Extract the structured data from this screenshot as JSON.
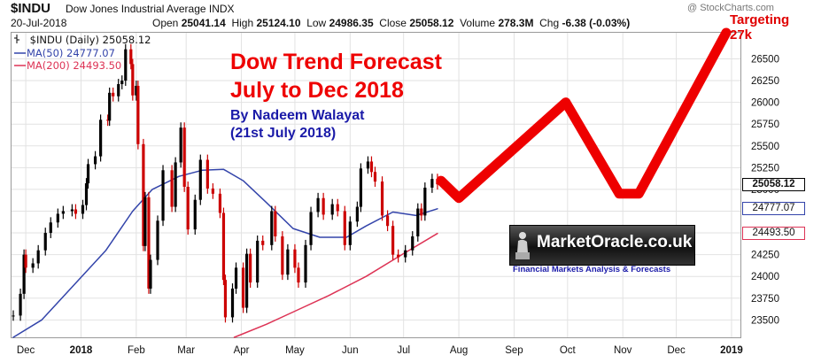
{
  "header": {
    "symbol": "$INDU",
    "name": "Dow Jones Industrial Average INDX",
    "date": "20-Jul-2018",
    "open_label": "Open",
    "open": "25041.14",
    "high_label": "High",
    "high": "25124.10",
    "low_label": "Low",
    "low": "24986.35",
    "close_label": "Close",
    "close": "25058.12",
    "volume_label": "Volume",
    "volume": "278.3M",
    "chg_label": "Chg",
    "chg": "-6.38 (-0.03%)",
    "watermark": "@ StockCharts.com"
  },
  "legend": {
    "price": "$INDU (Daily) 25058.12",
    "ma50": "MA(50) 24777.07",
    "ma200": "MA(200) 24493.50"
  },
  "annotation": {
    "title_line1": "Dow Trend Forecast",
    "title_line2": "July to Dec 2018",
    "author": "By Nadeem Walayat",
    "date": "(21st July 2018)",
    "target": "Targeting 27k"
  },
  "logo": {
    "name": "MarketOracle.co.uk",
    "tagline": "Financial Markets Analysis & Forecasts"
  },
  "colors": {
    "candle": "#000000",
    "down_candle": "#cc0000",
    "ma50": "#3344aa",
    "ma200": "#dd3355",
    "forecast": "#ee0000",
    "title": "#ee0000",
    "author": "#1a1aa8"
  },
  "chart_data": {
    "type": "line",
    "title": "$INDU (Daily) 25058.12",
    "x_type": "date",
    "xlim": [
      "2017-11-23",
      "2019-01-06"
    ],
    "ylim": [
      23300,
      26800
    ],
    "y_ticks": [
      23500,
      23750,
      24000,
      24250,
      24500,
      24750,
      25000,
      25250,
      25500,
      25750,
      26000,
      26250,
      26500
    ],
    "x_ticks": [
      {
        "date": "2017-12-01",
        "label": "Dec"
      },
      {
        "date": "2018-01-01",
        "label": "2018"
      },
      {
        "date": "2018-02-01",
        "label": "Feb"
      },
      {
        "date": "2018-03-01",
        "label": "Mar"
      },
      {
        "date": "2018-04-01",
        "label": "Apr"
      },
      {
        "date": "2018-05-01",
        "label": "May"
      },
      {
        "date": "2018-06-01",
        "label": "Jun"
      },
      {
        "date": "2018-07-01",
        "label": "Jul"
      },
      {
        "date": "2018-08-01",
        "label": "Aug"
      },
      {
        "date": "2018-09-01",
        "label": "Sep"
      },
      {
        "date": "2018-10-01",
        "label": "Oct"
      },
      {
        "date": "2018-11-01",
        "label": "Nov"
      },
      {
        "date": "2018-12-01",
        "label": "Dec"
      },
      {
        "date": "2019-01-01",
        "label": "2019"
      }
    ],
    "y_labels": [
      {
        "value": 25058.12,
        "text": "25058.12",
        "series": "price"
      },
      {
        "value": 24777.07,
        "text": "24777.07",
        "series": "ma50"
      },
      {
        "value": 24493.5,
        "text": "24493.50",
        "series": "ma200"
      }
    ],
    "price": [
      [
        "2017-11-24",
        23550
      ],
      [
        "2017-11-28",
        23800
      ],
      [
        "2017-11-30",
        24250
      ],
      [
        "2017-12-01",
        24100
      ],
      [
        "2017-12-05",
        24150
      ],
      [
        "2017-12-08",
        24300
      ],
      [
        "2017-12-12",
        24500
      ],
      [
        "2017-12-15",
        24620
      ],
      [
        "2017-12-19",
        24720
      ],
      [
        "2017-12-22",
        24750
      ],
      [
        "2017-12-27",
        24770
      ],
      [
        "2017-12-29",
        24720
      ],
      [
        "2018-01-02",
        24820
      ],
      [
        "2018-01-04",
        25070
      ],
      [
        "2018-01-05",
        25290
      ],
      [
        "2018-01-09",
        25380
      ],
      [
        "2018-01-12",
        25800
      ],
      [
        "2018-01-16",
        25790
      ],
      [
        "2018-01-17",
        26110
      ],
      [
        "2018-01-19",
        26070
      ],
      [
        "2018-01-22",
        26210
      ],
      [
        "2018-01-24",
        26250
      ],
      [
        "2018-01-26",
        26610
      ],
      [
        "2018-01-29",
        26440
      ],
      [
        "2018-01-30",
        26080
      ],
      [
        "2018-02-01",
        26190
      ],
      [
        "2018-02-02",
        25520
      ],
      [
        "2018-02-05",
        24350
      ],
      [
        "2018-02-06",
        24910
      ],
      [
        "2018-02-08",
        23860
      ],
      [
        "2018-02-09",
        24190
      ],
      [
        "2018-02-13",
        24640
      ],
      [
        "2018-02-16",
        25220
      ],
      [
        "2018-02-21",
        24800
      ],
      [
        "2018-02-23",
        25310
      ],
      [
        "2018-02-26",
        25710
      ],
      [
        "2018-02-28",
        25030
      ],
      [
        "2018-03-02",
        24540
      ],
      [
        "2018-03-06",
        24880
      ],
      [
        "2018-03-09",
        25340
      ],
      [
        "2018-03-13",
        25010
      ],
      [
        "2018-03-16",
        24950
      ],
      [
        "2018-03-20",
        24730
      ],
      [
        "2018-03-22",
        23960
      ],
      [
        "2018-03-23",
        23530
      ],
      [
        "2018-03-27",
        23860
      ],
      [
        "2018-03-29",
        24100
      ],
      [
        "2018-04-02",
        23640
      ],
      [
        "2018-04-04",
        24260
      ],
      [
        "2018-04-06",
        23930
      ],
      [
        "2018-04-10",
        24410
      ],
      [
        "2018-04-13",
        24360
      ],
      [
        "2018-04-18",
        24750
      ],
      [
        "2018-04-20",
        24460
      ],
      [
        "2018-04-24",
        24020
      ],
      [
        "2018-04-27",
        24310
      ],
      [
        "2018-05-01",
        24100
      ],
      [
        "2018-05-03",
        23930
      ],
      [
        "2018-05-07",
        24360
      ],
      [
        "2018-05-10",
        24740
      ],
      [
        "2018-05-14",
        24900
      ],
      [
        "2018-05-17",
        24710
      ],
      [
        "2018-05-22",
        24830
      ],
      [
        "2018-05-25",
        24750
      ],
      [
        "2018-05-29",
        24360
      ],
      [
        "2018-06-01",
        24630
      ],
      [
        "2018-06-05",
        24800
      ],
      [
        "2018-06-07",
        25240
      ],
      [
        "2018-06-11",
        25320
      ],
      [
        "2018-06-13",
        25200
      ],
      [
        "2018-06-15",
        25090
      ],
      [
        "2018-06-19",
        24700
      ],
      [
        "2018-06-22",
        24580
      ],
      [
        "2018-06-25",
        24250
      ],
      [
        "2018-06-28",
        24220
      ],
      [
        "2018-07-02",
        24300
      ],
      [
        "2018-07-06",
        24460
      ],
      [
        "2018-07-09",
        24780
      ],
      [
        "2018-07-11",
        24700
      ],
      [
        "2018-07-13",
        25020
      ],
      [
        "2018-07-17",
        25120
      ],
      [
        "2018-07-20",
        25058
      ]
    ],
    "ma50": [
      [
        "2017-11-24",
        23300
      ],
      [
        "2017-12-10",
        23500
      ],
      [
        "2017-12-28",
        23900
      ],
      [
        "2018-01-15",
        24300
      ],
      [
        "2018-01-30",
        24750
      ],
      [
        "2018-02-10",
        25000
      ],
      [
        "2018-02-25",
        25150
      ],
      [
        "2018-03-10",
        25220
      ],
      [
        "2018-03-22",
        25230
      ],
      [
        "2018-04-02",
        25100
      ],
      [
        "2018-04-15",
        24850
      ],
      [
        "2018-04-30",
        24550
      ],
      [
        "2018-05-15",
        24450
      ],
      [
        "2018-05-30",
        24450
      ],
      [
        "2018-06-10",
        24580
      ],
      [
        "2018-06-25",
        24740
      ],
      [
        "2018-07-08",
        24700
      ],
      [
        "2018-07-20",
        24777
      ]
    ],
    "ma200": [
      [
        "2018-03-28",
        23300
      ],
      [
        "2018-04-15",
        23450
      ],
      [
        "2018-05-01",
        23600
      ],
      [
        "2018-05-20",
        23780
      ],
      [
        "2018-06-10",
        24000
      ],
      [
        "2018-06-30",
        24250
      ],
      [
        "2018-07-20",
        24493
      ]
    ],
    "forecast": [
      [
        "2018-07-22",
        25100
      ],
      [
        "2018-08-01",
        24900
      ],
      [
        "2018-09-30",
        26000
      ],
      [
        "2018-10-30",
        24950
      ],
      [
        "2018-11-10",
        24950
      ],
      [
        "2018-12-29",
        26800
      ]
    ]
  }
}
